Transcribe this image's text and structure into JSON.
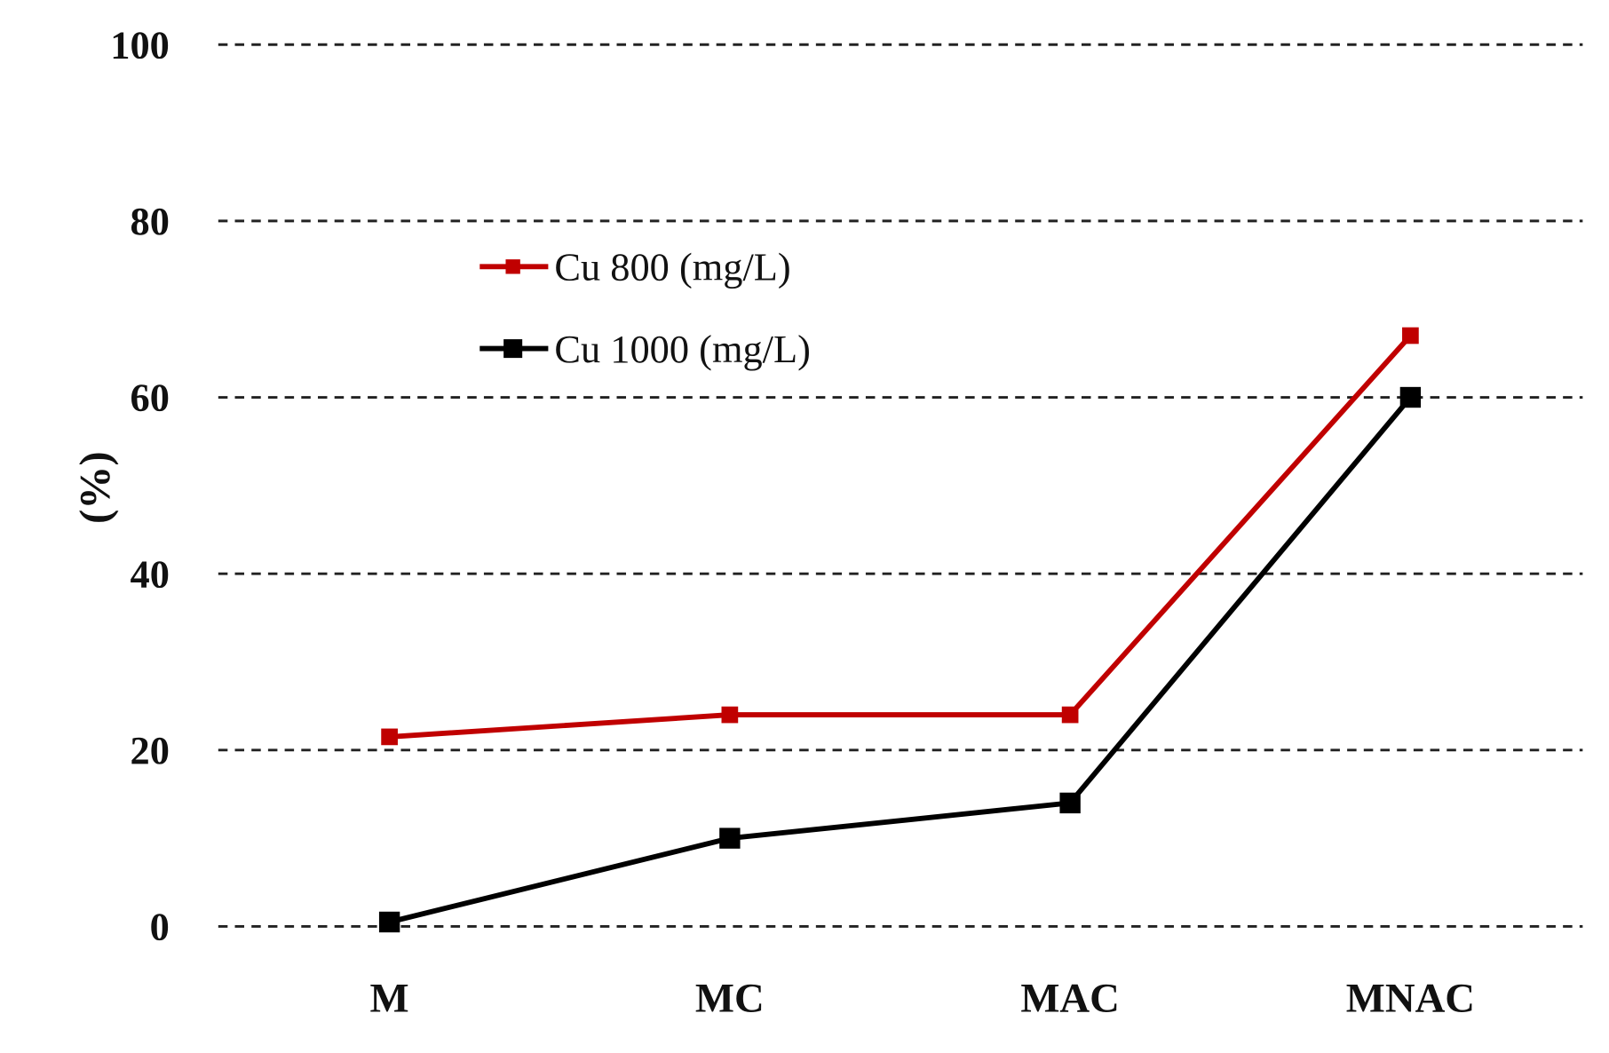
{
  "chart_data": {
    "type": "line",
    "title": "",
    "xlabel": "",
    "ylabel": "(%)",
    "ylim": [
      0,
      100
    ],
    "yticks": [
      0,
      20,
      40,
      60,
      80,
      100
    ],
    "grid": "horizontal dashed",
    "legend_placement": "upper-left",
    "categories": [
      "M",
      "MC",
      "MAC",
      "MNAC"
    ],
    "series": [
      {
        "name": "Cu 800 (mg/L)",
        "color": "#c00000",
        "marker": "square",
        "values": [
          21.5,
          24,
          24,
          67
        ]
      },
      {
        "name": "Cu 1000 (mg/L)",
        "color": "#000000",
        "marker": "square",
        "values": [
          0.5,
          10,
          14,
          60
        ]
      }
    ]
  }
}
